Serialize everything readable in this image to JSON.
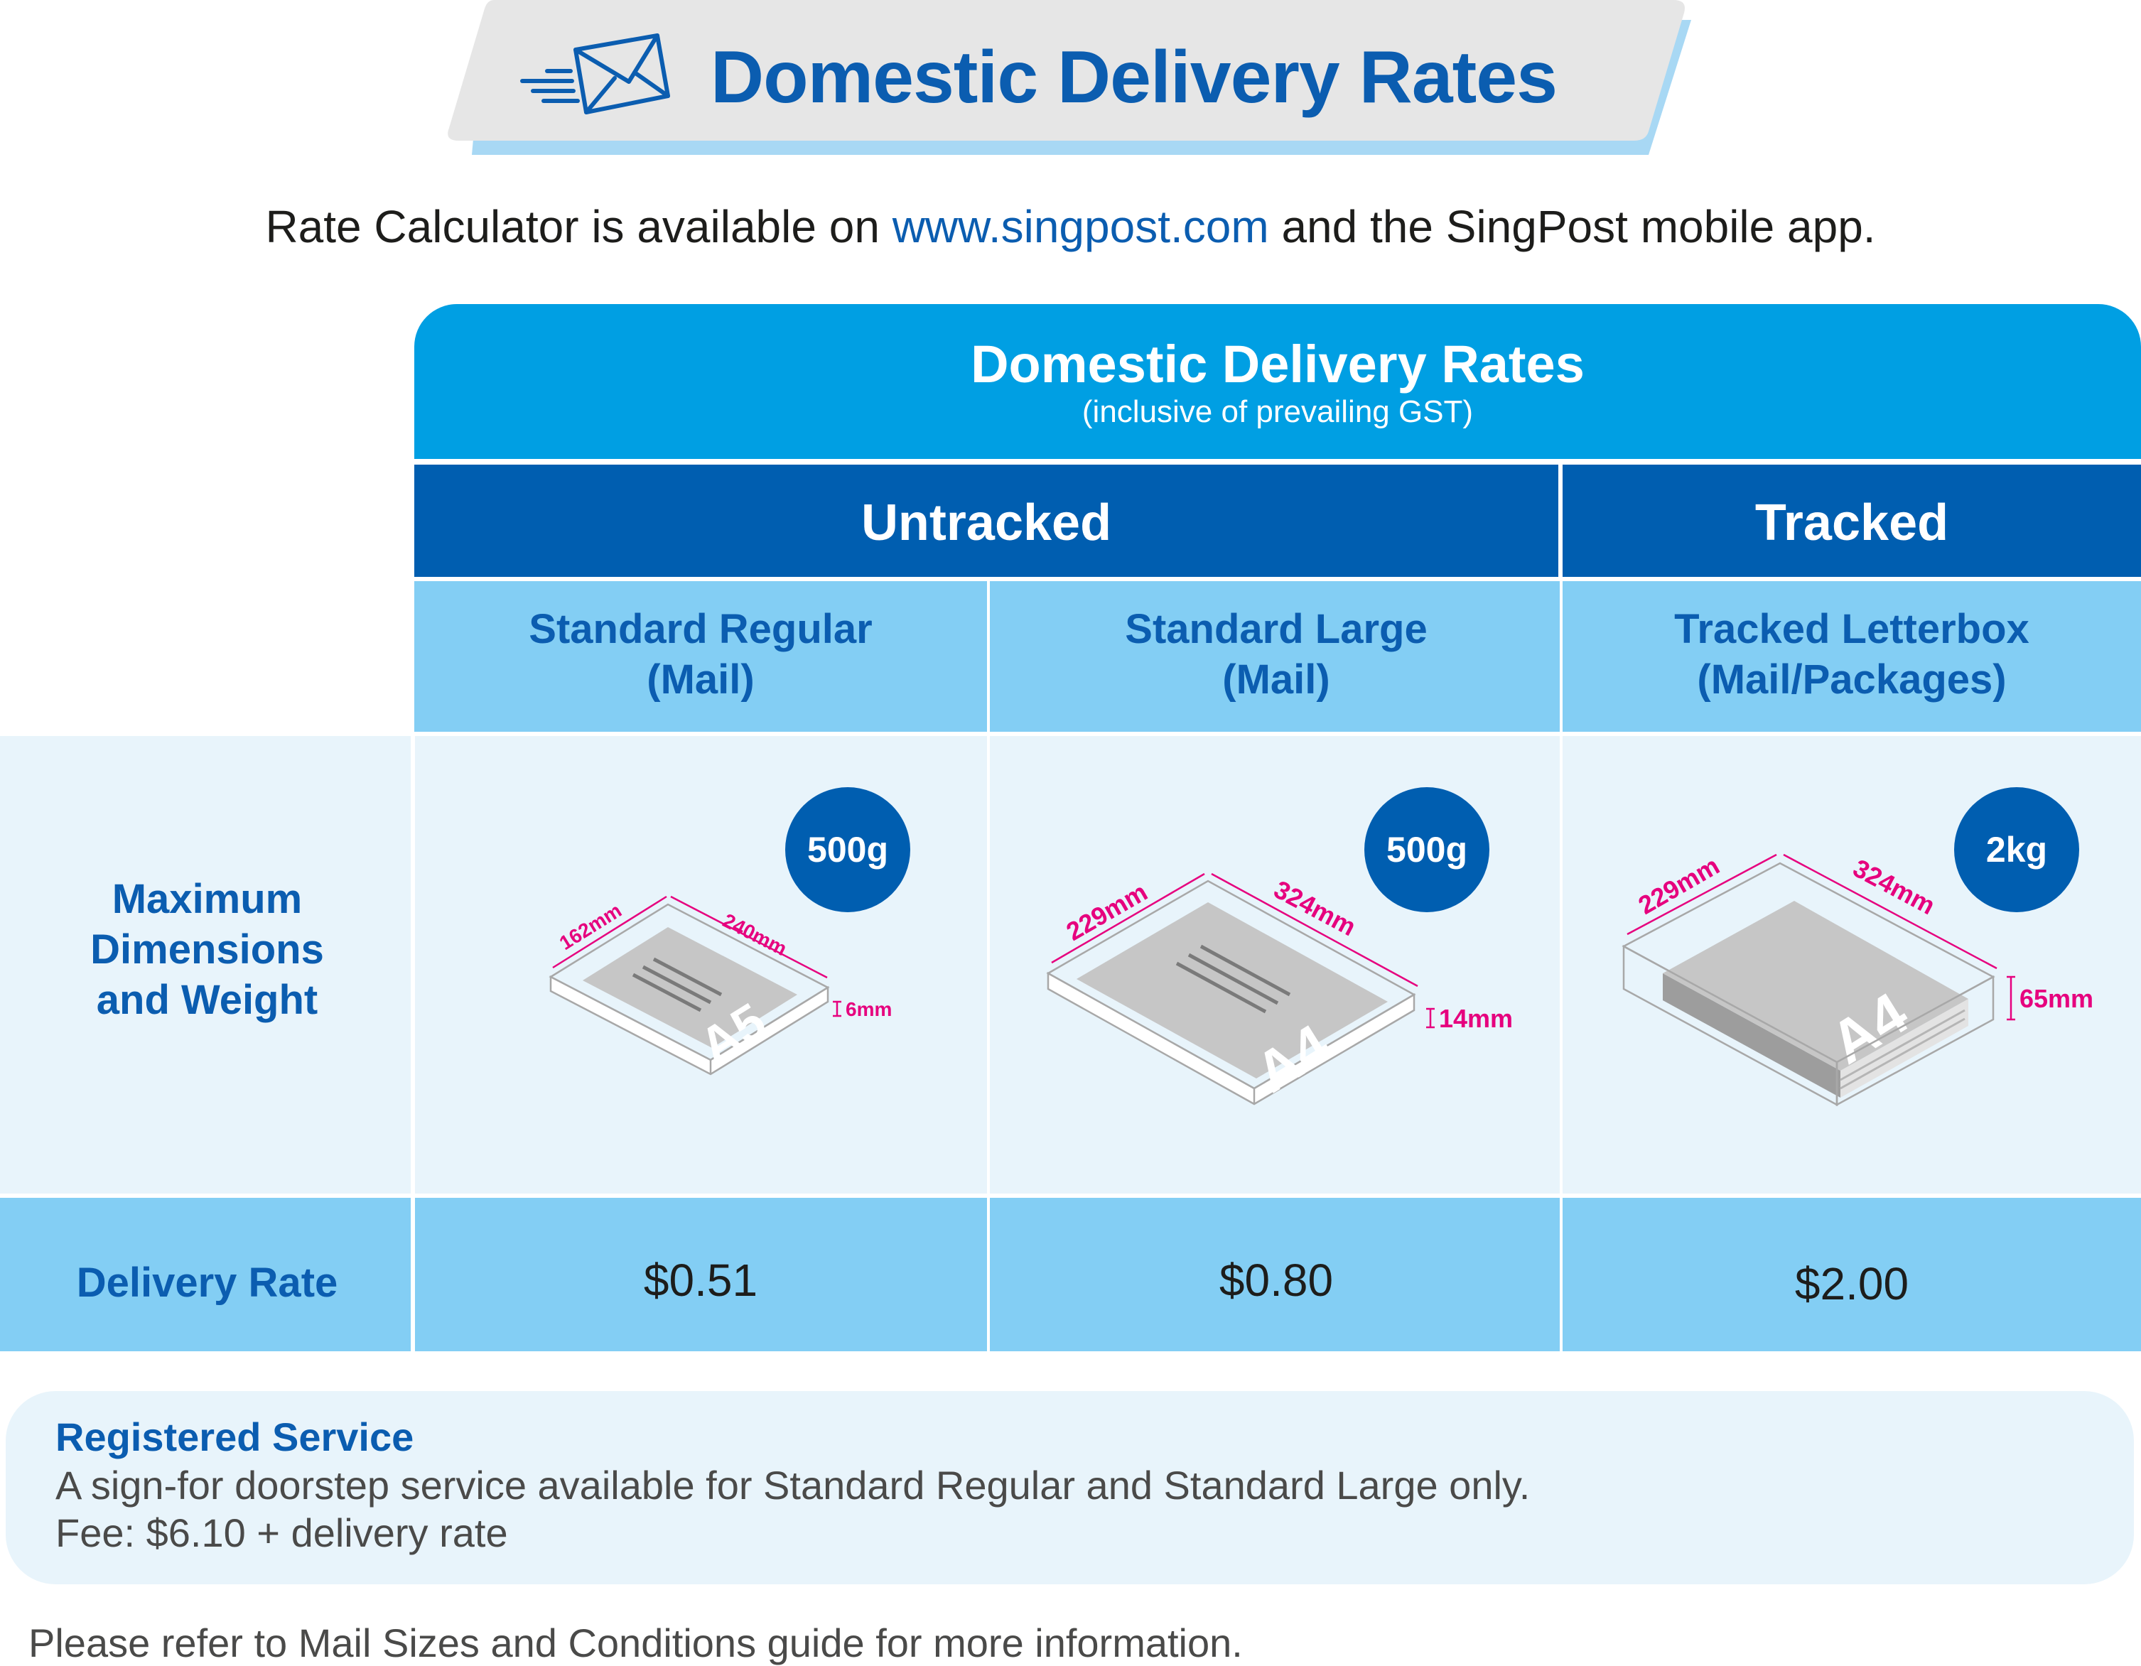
{
  "banner": {
    "title": "Domestic Delivery Rates",
    "icon": "envelope-icon"
  },
  "subline": {
    "prefix": "Rate Calculator is available on ",
    "link": "www.singpost.com",
    "suffix": " and the SingPost mobile app."
  },
  "table": {
    "title": "Domestic Delivery Rates",
    "subtitle": "(inclusive of prevailing GST)",
    "groups": {
      "untracked": "Untracked",
      "tracked": "Tracked"
    },
    "row_labels": {
      "dimensions_line1": "Maximum",
      "dimensions_line2": "Dimensions",
      "dimensions_line3": "and Weight",
      "rate": "Delivery Rate"
    },
    "services": [
      {
        "name_line1": "Standard Regular",
        "name_line2": "(Mail)",
        "max_weight": "500g",
        "width": "162mm",
        "length": "240mm",
        "thickness": "6mm",
        "paper_size": "A5",
        "rate": "$0.51"
      },
      {
        "name_line1": "Standard Large",
        "name_line2": "(Mail)",
        "max_weight": "500g",
        "width": "229mm",
        "length": "324mm",
        "thickness": "14mm",
        "paper_size": "A4",
        "rate": "$0.80"
      },
      {
        "name_line1": "Tracked Letterbox",
        "name_line2": "(Mail/Packages)",
        "max_weight": "2kg",
        "width": "229mm",
        "length": "324mm",
        "thickness": "65mm",
        "paper_size": "A4",
        "rate": "$2.00"
      }
    ]
  },
  "registered": {
    "title": "Registered Service",
    "description": "A sign-for doorstep service available for Standard Regular and Standard Large only.",
    "fee": "Fee: $6.10 + delivery rate"
  },
  "footer": {
    "note": "Please refer to Mail Sizes and Conditions guide for more information."
  },
  "colors": {
    "brand_blue": "#0b5db0",
    "dark_blue": "#005eb0",
    "bright_blue": "#009fe3",
    "light_blue": "#83cef4",
    "pale_blue": "#e8f4fb",
    "dimension_pink": "#e6007e"
  }
}
